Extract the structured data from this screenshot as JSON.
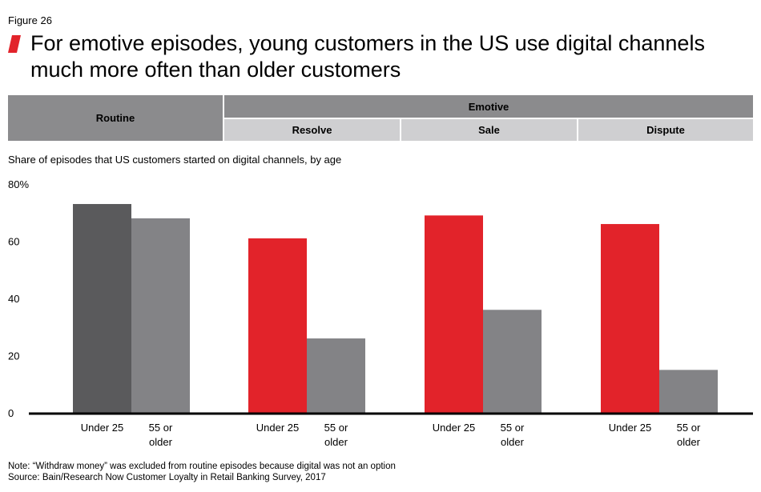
{
  "figure_label": "Figure 26",
  "title_line1": "For emotive episodes, young customers in the US use digital channels",
  "title_line2": "much more often than older customers",
  "header": {
    "routine": "Routine",
    "emotive": "Emotive",
    "resolve": "Resolve",
    "sale": "Sale",
    "dispute": "Dispute"
  },
  "subtitle": "Share of episodes that US customers started on digital channels, by age",
  "chart_data": {
    "type": "bar",
    "title": "Share of episodes that US customers started on digital channels, by age",
    "groups": [
      "Routine",
      "Resolve",
      "Sale",
      "Dispute"
    ],
    "group_headers": {
      "Routine": "Routine",
      "Emotive": [
        "Resolve",
        "Sale",
        "Dispute"
      ]
    },
    "series": [
      {
        "name": "Under 25",
        "label": "Under 25",
        "values": [
          73,
          61,
          69,
          66
        ]
      },
      {
        "name": "55 or older",
        "label": "55 or\nolder",
        "values": [
          68,
          26,
          36,
          15
        ]
      }
    ],
    "ylim": [
      0,
      80
    ],
    "yticks": [
      0,
      20,
      40,
      60,
      80
    ],
    "ytick_labels": [
      "0",
      "20",
      "40",
      "60",
      "80%"
    ],
    "xlabel": "",
    "ylabel": "",
    "colors": {
      "routine_young": "#5a5a5c",
      "emotive_young": "#e2232a",
      "older": "#838386"
    }
  },
  "colors": {
    "accent_red": "#e2232a",
    "header_dark": "#8b8b8d",
    "header_light": "#cfcfd1"
  },
  "note": "Note: “Withdraw money” was excluded from routine episodes because digital was not an option",
  "source": "Source: Bain/Research Now Customer Loyalty in Retail Banking Survey, 2017"
}
